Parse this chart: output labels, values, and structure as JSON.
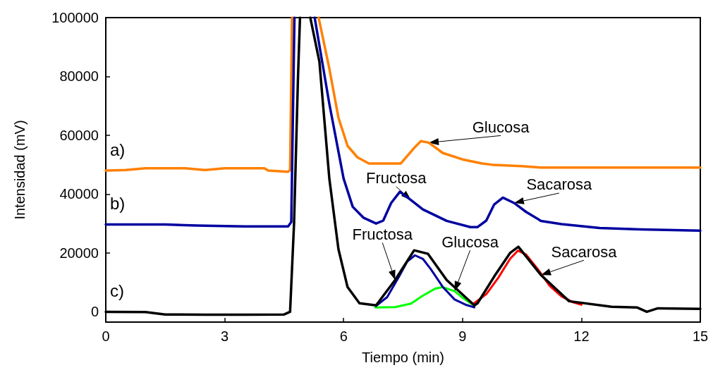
{
  "chart_data": {
    "type": "line",
    "xlabel": "Tiempo (min)",
    "ylabel": "Intensidad (mV)",
    "xlim": [
      0,
      15
    ],
    "xticks": [
      0,
      3,
      6,
      9,
      12,
      15
    ],
    "ylim": [
      -3500,
      100000
    ],
    "yticks": [
      0,
      20000,
      40000,
      60000,
      80000,
      100000
    ],
    "grid": false,
    "legend": false,
    "marker": "none",
    "line_style": "solid",
    "series": [
      {
        "name": "a)",
        "color": "#ff8000",
        "x": [
          0,
          0.5,
          1,
          2,
          2.5,
          3,
          4,
          4.1,
          4.6,
          4.65,
          4.7,
          5.0,
          5.37,
          5.64,
          5.87,
          6.1,
          6.35,
          6.64,
          7.44,
          7.8,
          7.95,
          8.15,
          8.5,
          9.0,
          9.5,
          9.8,
          10.5,
          11,
          15
        ],
        "values": [
          48000,
          48200,
          48800,
          48800,
          48200,
          48800,
          48800,
          48000,
          47600,
          48200,
          100000,
          null,
          100000,
          82700,
          66000,
          56400,
          52500,
          50400,
          50400,
          56000,
          58000,
          57500,
          54000,
          51800,
          50400,
          49900,
          49500,
          49000,
          49000
        ]
      },
      {
        "name": "b)",
        "color": "#0000a0",
        "x": [
          0,
          1.5,
          2.3,
          3.5,
          4.6,
          4.68,
          4.76,
          5.0,
          5.27,
          5.64,
          6.0,
          6.23,
          6.5,
          6.82,
          7.0,
          7.2,
          7.42,
          7.7,
          8.0,
          8.6,
          9.2,
          9.38,
          9.6,
          9.8,
          10.02,
          10.3,
          10.6,
          10.98,
          11.5,
          12.46,
          13.5,
          15
        ],
        "values": [
          29700,
          29700,
          29300,
          29000,
          29000,
          30500,
          100000,
          null,
          100000,
          70700,
          45300,
          35700,
          32000,
          30000,
          31000,
          37000,
          40800,
          38000,
          34800,
          30900,
          28800,
          28800,
          31000,
          36500,
          38800,
          37000,
          34000,
          30900,
          29800,
          28500,
          28000,
          27600
        ]
      },
      {
        "color": "#00ff00",
        "x": [
          6.8,
          7.3,
          7.7,
          8.0,
          8.3,
          8.5,
          8.8,
          9.0,
          9.3
        ],
        "values": [
          1500,
          1600,
          2800,
          5500,
          7800,
          8400,
          7000,
          4800,
          2000
        ]
      },
      {
        "color": "#0000a0",
        "x": [
          6.82,
          7.1,
          7.4,
          7.6,
          7.8,
          8.0,
          8.2,
          8.5,
          8.8,
          9.1,
          9.3
        ],
        "values": [
          2000,
          5000,
          12000,
          17000,
          19200,
          18000,
          14500,
          8500,
          4200,
          2300,
          1500
        ]
      },
      {
        "color": "#ff0000",
        "x": [
          9.3,
          9.6,
          9.9,
          10.2,
          10.4,
          10.6,
          10.9,
          11.2,
          11.5,
          11.8,
          12.0
        ],
        "values": [
          3000,
          6000,
          11500,
          18000,
          20800,
          19500,
          14500,
          8800,
          5200,
          3200,
          2400
        ]
      },
      {
        "name": "c)",
        "color": "#000000",
        "x": [
          0,
          1,
          1.5,
          2.5,
          3.5,
          4.5,
          4.65,
          4.75,
          4.85,
          4.9,
          5.0,
          5.16,
          5.39,
          5.64,
          5.87,
          6.1,
          6.4,
          6.82,
          7.3,
          7.78,
          8.13,
          8.6,
          9.3,
          9.38,
          9.8,
          10.2,
          10.41,
          10.98,
          11.69,
          12.76,
          13.4,
          13.65,
          13.93,
          15
        ],
        "values": [
          0,
          -100,
          -900,
          -1000,
          -1000,
          -900,
          0,
          30000,
          80000,
          100000,
          null,
          100000,
          85000,
          45300,
          21300,
          8400,
          2900,
          2200,
          10800,
          20900,
          19700,
          10800,
          2200,
          2900,
          12000,
          20000,
          22100,
          12500,
          3600,
          1700,
          1500,
          0,
          1200,
          1000
        ]
      }
    ],
    "annotations": [
      {
        "text": "Glucosa",
        "x": 8.15,
        "y": 57500
      },
      {
        "text": "Fructosa",
        "x": 7.7,
        "y": 38000
      },
      {
        "text": "Sacarosa",
        "x": 10.3,
        "y": 37000
      },
      {
        "text": "Fructosa",
        "x": 7.3,
        "y": 10800
      },
      {
        "text": "Glucosa",
        "x": 8.8,
        "y": 7000
      },
      {
        "text": "Sacarosa",
        "x": 10.98,
        "y": 12500
      }
    ]
  }
}
